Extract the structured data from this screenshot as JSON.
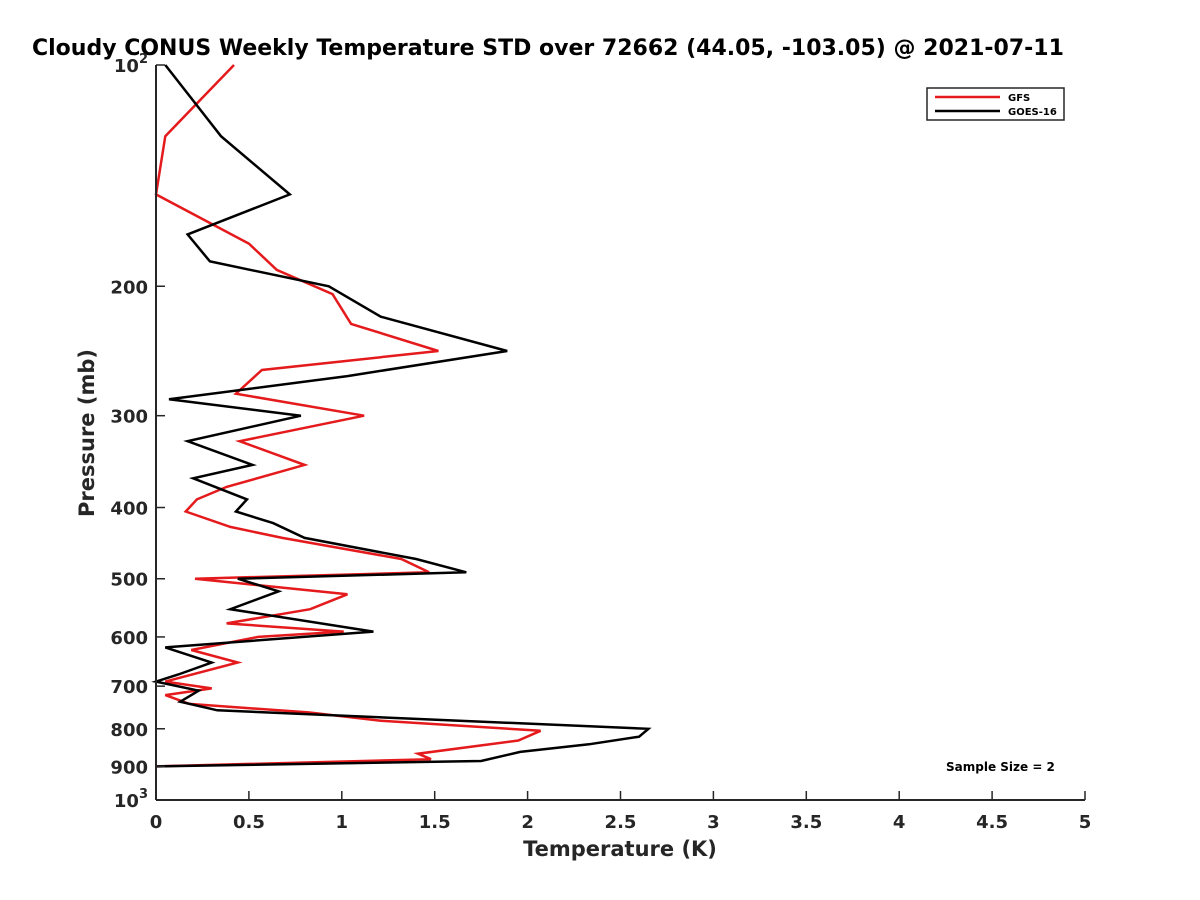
{
  "chart_data": {
    "type": "line",
    "orientation": "profile (x = temperature, y = pressure)",
    "title": "Cloudy CONUS Weekly Temperature STD over 72662 (44.05, -103.05) @ 2021-07-11",
    "xlabel": "Temperature (K)",
    "ylabel": "Pressure (mb)",
    "xlim": [
      0,
      5
    ],
    "ylim": [
      100,
      1000
    ],
    "y_scale": "log",
    "y_reversed": true,
    "grid": false,
    "legend_position": "top-right",
    "x_ticks": [
      "0",
      "0.5",
      "1",
      "1.5",
      "2",
      "2.5",
      "3",
      "3.5",
      "4",
      "4.5",
      "5"
    ],
    "x_tick_values": [
      0,
      0.5,
      1,
      1.5,
      2,
      2.5,
      3,
      3.5,
      4,
      4.5,
      5
    ],
    "y_ticks": [
      {
        "value": 100,
        "label": "10",
        "sup": "2"
      },
      {
        "value": 200,
        "label": "200",
        "sup": ""
      },
      {
        "value": 300,
        "label": "300",
        "sup": ""
      },
      {
        "value": 400,
        "label": "400",
        "sup": ""
      },
      {
        "value": 500,
        "label": "500",
        "sup": ""
      },
      {
        "value": 600,
        "label": "600",
        "sup": ""
      },
      {
        "value": 700,
        "label": "700",
        "sup": ""
      },
      {
        "value": 800,
        "label": "800",
        "sup": ""
      },
      {
        "value": 900,
        "label": "900",
        "sup": ""
      },
      {
        "value": 1000,
        "label": "10",
        "sup": "3"
      }
    ],
    "annotation": "Sample Size = 2",
    "series": [
      {
        "name": "GFS",
        "color": "#e41a1c",
        "points": [
          [
            0.42,
            100
          ],
          [
            0.05,
            125
          ],
          [
            0.0,
            150
          ],
          [
            0.5,
            175
          ],
          [
            0.65,
            190
          ],
          [
            0.95,
            205
          ],
          [
            1.05,
            225
          ],
          [
            1.52,
            245
          ],
          [
            0.57,
            260
          ],
          [
            0.43,
            280
          ],
          [
            1.12,
            300
          ],
          [
            0.45,
            325
          ],
          [
            0.8,
            350
          ],
          [
            0.38,
            375
          ],
          [
            0.22,
            390
          ],
          [
            0.16,
            405
          ],
          [
            0.4,
            425
          ],
          [
            0.68,
            440
          ],
          [
            1.32,
            470
          ],
          [
            1.47,
            490
          ],
          [
            0.21,
            500
          ],
          [
            1.03,
            525
          ],
          [
            0.83,
            550
          ],
          [
            0.38,
            575
          ],
          [
            1.01,
            590
          ],
          [
            0.55,
            600
          ],
          [
            0.19,
            625
          ],
          [
            0.44,
            650
          ],
          [
            0.05,
            690
          ],
          [
            0.3,
            705
          ],
          [
            0.05,
            720
          ],
          [
            0.18,
            740
          ],
          [
            0.82,
            760
          ],
          [
            1.21,
            780
          ],
          [
            2.07,
            805
          ],
          [
            1.95,
            830
          ],
          [
            1.41,
            865
          ],
          [
            1.48,
            880
          ],
          [
            0.0,
            900
          ]
        ]
      },
      {
        "name": "GOES-16",
        "color": "#000000",
        "points": [
          [
            0.05,
            100
          ],
          [
            0.35,
            125
          ],
          [
            0.72,
            150
          ],
          [
            0.17,
            170
          ],
          [
            0.29,
            185
          ],
          [
            0.93,
            200
          ],
          [
            1.21,
            220
          ],
          [
            1.89,
            245
          ],
          [
            1.03,
            265
          ],
          [
            0.07,
            285
          ],
          [
            0.78,
            300
          ],
          [
            0.17,
            325
          ],
          [
            0.52,
            350
          ],
          [
            0.2,
            365
          ],
          [
            0.49,
            390
          ],
          [
            0.43,
            405
          ],
          [
            0.63,
            420
          ],
          [
            0.8,
            440
          ],
          [
            1.4,
            470
          ],
          [
            1.67,
            490
          ],
          [
            0.44,
            500
          ],
          [
            0.66,
            520
          ],
          [
            0.4,
            550
          ],
          [
            1.17,
            590
          ],
          [
            0.05,
            620
          ],
          [
            0.3,
            650
          ],
          [
            0.12,
            675
          ],
          [
            0.0,
            690
          ],
          [
            0.23,
            710
          ],
          [
            0.13,
            735
          ],
          [
            0.33,
            755
          ],
          [
            2.65,
            800
          ],
          [
            2.6,
            820
          ],
          [
            2.33,
            840
          ],
          [
            1.96,
            860
          ],
          [
            1.75,
            885
          ],
          [
            0.0,
            900
          ]
        ]
      }
    ]
  }
}
